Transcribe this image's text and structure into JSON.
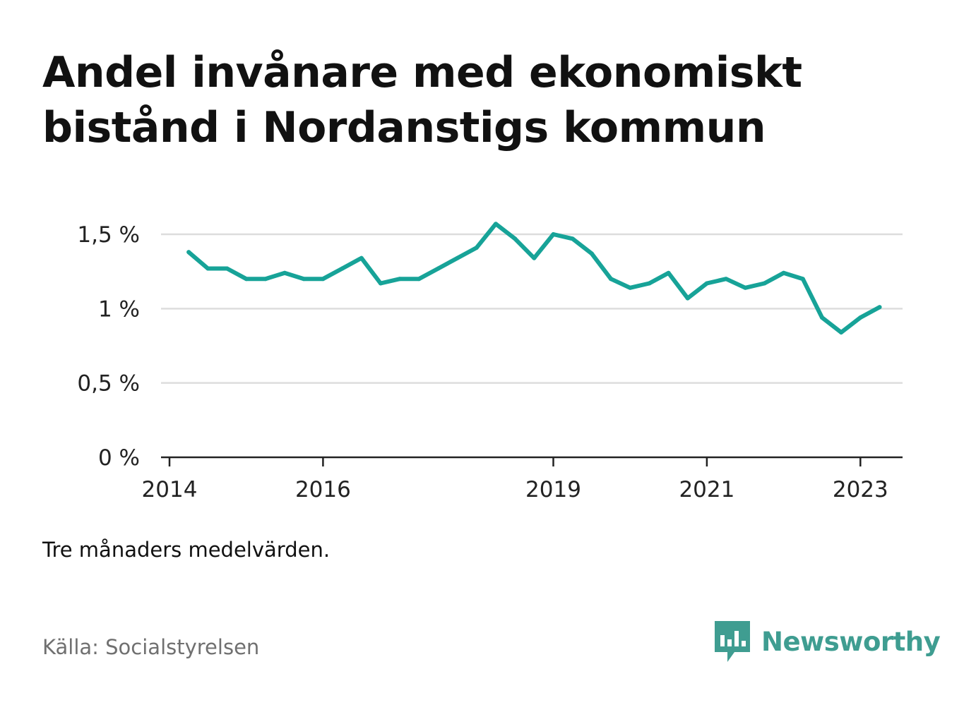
{
  "title_lines": [
    "Andel invånare med ekonomiskt",
    "bistånd i Nordanstigs kommun"
  ],
  "note": "Tre månaders medelvärden.",
  "source": "Källa: Socialstyrelsen",
  "brand": {
    "name": "Newsworthy",
    "icon": "newsworthy-logo-icon",
    "color": "#3f9d91"
  },
  "colors": {
    "line": "#17a398",
    "grid": "#dddddd",
    "axis": "#222222"
  },
  "chart_data": {
    "type": "line",
    "title": "Andel invånare med ekonomiskt bistånd i Nordanstigs kommun",
    "xlabel": "",
    "ylabel": "",
    "ylim": [
      0,
      1.5
    ],
    "y_ticks": [
      0,
      0.5,
      1,
      1.5
    ],
    "y_tick_labels": [
      "0 %",
      "0,5 %",
      "1 %",
      "1,5 %"
    ],
    "x_range": [
      "2014-01",
      "2023-07"
    ],
    "x_ticks": [
      "2014-01",
      "2016-01",
      "2019-01",
      "2021-01",
      "2023-01"
    ],
    "x_tick_labels": [
      "2014",
      "2016",
      "2019",
      "2021",
      "2023"
    ],
    "grid": true,
    "series": [
      {
        "x": [
          "2014-04",
          "2014-07",
          "2014-10",
          "2015-01",
          "2015-04",
          "2015-07",
          "2015-10",
          "2016-01",
          "2016-04",
          "2016-07",
          "2016-10",
          "2017-01",
          "2017-04",
          "2017-07",
          "2017-10",
          "2018-01",
          "2018-04",
          "2018-07",
          "2018-10",
          "2019-01",
          "2019-04",
          "2019-07",
          "2019-10",
          "2020-01",
          "2020-04",
          "2020-07",
          "2020-10",
          "2021-01",
          "2021-04",
          "2021-07",
          "2021-10",
          "2022-01",
          "2022-04",
          "2022-07",
          "2022-10",
          "2023-01",
          "2023-04"
        ],
        "values": [
          1.38,
          1.27,
          1.27,
          1.2,
          1.2,
          1.24,
          1.2,
          1.2,
          1.27,
          1.34,
          1.17,
          1.2,
          1.2,
          1.27,
          1.34,
          1.41,
          1.57,
          1.47,
          1.34,
          1.5,
          1.47,
          1.37,
          1.2,
          1.14,
          1.17,
          1.24,
          1.07,
          1.17,
          1.2,
          1.14,
          1.17,
          1.24,
          1.2,
          0.94,
          0.84,
          0.94,
          1.01
        ]
      }
    ]
  }
}
